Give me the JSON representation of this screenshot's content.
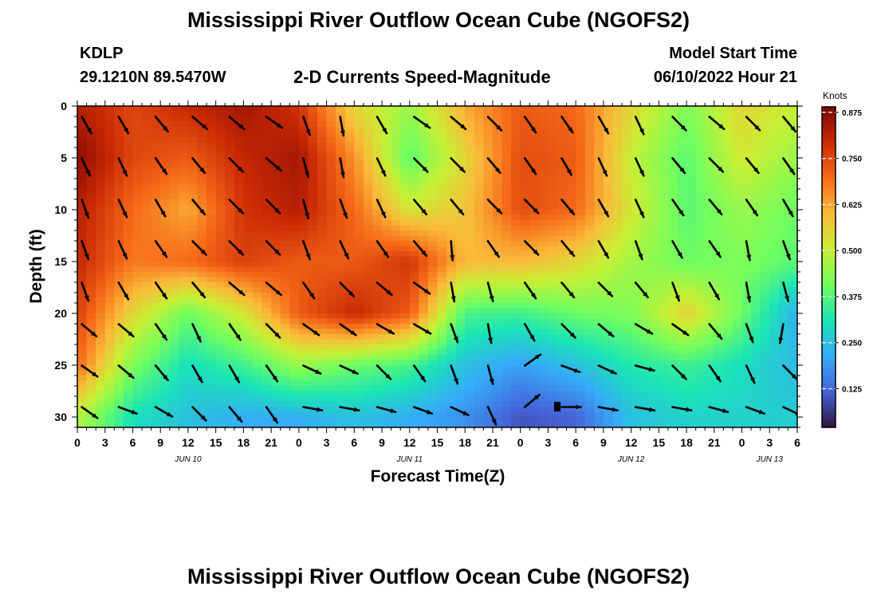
{
  "page": {
    "title": "Mississippi River Outflow Ocean Cube (NGOFS2)",
    "title_repeat": "Mississippi River Outflow Ocean Cube (NGOFS2)",
    "station_id": "KDLP",
    "station_coords": "29.1210N  89.5470W",
    "plot_subtitle": "2-D Currents Speed-Magnitude",
    "model_start_label": "Model Start Time",
    "model_start_value": "06/10/2022 Hour 21"
  },
  "colors": {
    "scale": [
      "#30123b",
      "#4662d7",
      "#36aaf9",
      "#1ae4b6",
      "#72fe5e",
      "#c8ef34",
      "#faba39",
      "#f66b19",
      "#ca2a04",
      "#7a0403"
    ]
  },
  "chart_data": {
    "type": "heatmap",
    "title": "2-D Currents Speed-Magnitude",
    "xlabel": "Forecast Time(Z)",
    "ylabel": "Depth (ft)",
    "x_tick_labels": [
      "0",
      "3",
      "6",
      "9",
      "12",
      "15",
      "18",
      "21",
      "0",
      "3",
      "6",
      "9",
      "12",
      "15",
      "18",
      "21",
      "0",
      "3",
      "6",
      "9",
      "12",
      "15",
      "18",
      "21",
      "0",
      "3",
      "6"
    ],
    "x_range_hours": [
      0,
      78
    ],
    "date_labels": [
      {
        "label": "JUN 10",
        "hour": 12
      },
      {
        "label": "JUN 11",
        "hour": 36
      },
      {
        "label": "JUN 12",
        "hour": 60
      },
      {
        "label": "JUN 13",
        "hour": 75
      }
    ],
    "y_ticks": [
      0,
      5,
      10,
      15,
      20,
      25,
      30
    ],
    "y_tick_labels": [
      "0",
      "5",
      "10",
      "15",
      "20",
      "25",
      "30"
    ],
    "ylim": [
      0,
      31
    ],
    "colorbar": {
      "units": "Knots",
      "min": 0.02,
      "max": 0.89,
      "ticks": [
        0.125,
        0.25,
        0.375,
        0.5,
        0.625,
        0.75,
        0.875
      ],
      "tick_labels": [
        "0.125",
        "0.250",
        "0.375",
        "0.500",
        "0.625",
        "0.750",
        "0.875"
      ]
    },
    "speed_anchors": {
      "hours": [
        0,
        6,
        12,
        18,
        24,
        30,
        36,
        42,
        48,
        54,
        60,
        66,
        72,
        78
      ],
      "depths": [
        0,
        5,
        10,
        15,
        20,
        25,
        30
      ],
      "values": [
        [
          0.82,
          0.75,
          0.8,
          0.84,
          0.78,
          0.55,
          0.45,
          0.62,
          0.72,
          0.7,
          0.55,
          0.42,
          0.55,
          0.5
        ],
        [
          0.87,
          0.75,
          0.72,
          0.8,
          0.84,
          0.65,
          0.38,
          0.55,
          0.74,
          0.72,
          0.5,
          0.38,
          0.52,
          0.45
        ],
        [
          0.82,
          0.7,
          0.62,
          0.78,
          0.82,
          0.7,
          0.52,
          0.58,
          0.74,
          0.7,
          0.52,
          0.38,
          0.45,
          0.4
        ],
        [
          0.8,
          0.68,
          0.7,
          0.76,
          0.72,
          0.72,
          0.78,
          0.6,
          0.6,
          0.55,
          0.46,
          0.4,
          0.42,
          0.38
        ],
        [
          0.76,
          0.55,
          0.4,
          0.52,
          0.72,
          0.8,
          0.72,
          0.36,
          0.35,
          0.4,
          0.42,
          0.56,
          0.4,
          0.22
        ],
        [
          0.7,
          0.42,
          0.3,
          0.35,
          0.45,
          0.4,
          0.36,
          0.25,
          0.2,
          0.25,
          0.32,
          0.35,
          0.3,
          0.24
        ],
        [
          0.48,
          0.3,
          0.25,
          0.22,
          0.22,
          0.25,
          0.22,
          0.18,
          0.1,
          0.12,
          0.25,
          0.28,
          0.28,
          0.27
        ]
      ]
    },
    "vectors": {
      "hours": [
        1,
        5,
        9,
        13,
        17,
        21,
        25,
        29,
        33,
        37,
        41,
        45,
        49,
        53,
        57,
        61,
        65,
        69,
        73,
        77
      ],
      "depths": [
        1.5,
        5.5,
        9.5,
        13.5,
        17.5,
        21.5,
        25.5,
        29.5
      ],
      "angles_deg": [
        [
          60,
          60,
          50,
          40,
          40,
          35,
          70,
          80,
          60,
          35,
          40,
          45,
          55,
          55,
          60,
          65,
          45,
          40,
          45,
          50
        ],
        [
          65,
          65,
          55,
          50,
          45,
          40,
          75,
          80,
          65,
          45,
          45,
          50,
          55,
          60,
          65,
          65,
          50,
          45,
          50,
          55
        ],
        [
          70,
          65,
          60,
          50,
          45,
          45,
          75,
          70,
          65,
          50,
          50,
          45,
          45,
          50,
          60,
          65,
          55,
          50,
          55,
          60
        ],
        [
          70,
          65,
          55,
          45,
          45,
          45,
          70,
          65,
          55,
          50,
          85,
          55,
          45,
          50,
          60,
          70,
          60,
          55,
          80,
          70
        ],
        [
          70,
          60,
          55,
          50,
          40,
          40,
          55,
          45,
          40,
          35,
          80,
          75,
          55,
          50,
          45,
          50,
          70,
          60,
          80,
          75
        ],
        [
          40,
          40,
          55,
          65,
          55,
          45,
          35,
          35,
          30,
          30,
          70,
          80,
          60,
          45,
          40,
          30,
          35,
          50,
          70,
          100
        ],
        [
          35,
          40,
          50,
          60,
          60,
          55,
          25,
          25,
          45,
          55,
          70,
          75,
          -35,
          20,
          25,
          15,
          45,
          55,
          65,
          45
        ],
        [
          35,
          20,
          30,
          45,
          50,
          55,
          10,
          10,
          15,
          20,
          25,
          65,
          -40,
          0,
          10,
          10,
          10,
          15,
          20,
          25
        ]
      ]
    },
    "marker": {
      "hour": 52,
      "depth": 29
    }
  }
}
